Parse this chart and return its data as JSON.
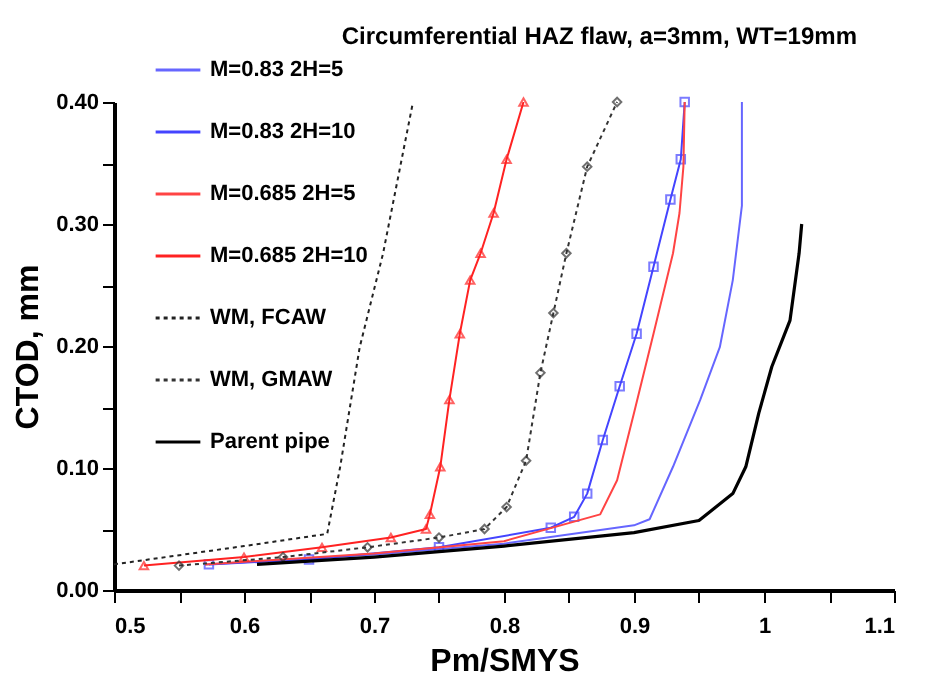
{
  "chart_data": {
    "type": "line",
    "title": "Circumferential HAZ flaw, a=3mm, WT=19mm",
    "xlabel": "Pm/SMYS",
    "ylabel": "CTOD, mm",
    "xlim": [
      0.5,
      1.1
    ],
    "ylim": [
      0,
      0.4
    ],
    "xticks": [
      0.5,
      {
        "value": 0.55,
        "label": null
      },
      0.6,
      {
        "value": 0.65,
        "label": null
      },
      0.7,
      {
        "value": 0.75,
        "label": null
      },
      0.8,
      {
        "value": 0.85,
        "label": null
      },
      0.9,
      {
        "value": 0.95,
        "label": null
      },
      1,
      {
        "value": 1.05,
        "label": null
      },
      1.1
    ],
    "yticks": [
      {
        "value": 0,
        "label": "0.00"
      },
      {
        "value": 0.05,
        "label": null
      },
      {
        "value": 0.1,
        "label": "0.10"
      },
      {
        "value": 0.15,
        "label": null
      },
      {
        "value": 0.2,
        "label": "0.20"
      },
      {
        "value": 0.25,
        "label": null
      },
      {
        "value": 0.3,
        "label": "0.30"
      },
      {
        "value": 0.35,
        "label": null
      },
      {
        "value": 0.4,
        "label": "0.40"
      }
    ],
    "grid": false,
    "legend": "top left",
    "series": [
      {
        "name": "M=0.83 2H=5",
        "color": "#6666ff",
        "marker": "none",
        "line_style": "solid",
        "x": [
          0.57,
          0.7,
          0.8,
          0.9,
          0.912,
          0.93,
          0.951,
          0.966,
          0.976,
          0.983,
          0.983
        ],
        "values": [
          0.021,
          0.029,
          0.038,
          0.053,
          0.058,
          0.101,
          0.156,
          0.199,
          0.254,
          0.315,
          0.4
        ]
      },
      {
        "name": "M=0.83 2H=10",
        "color": "#4444ff",
        "marker": "square",
        "line_style": "solid",
        "x": [
          0.573,
          0.65,
          0.75,
          0.836,
          0.854,
          0.864,
          0.876,
          0.889,
          0.902,
          0.915,
          0.928,
          0.936,
          0.939
        ],
        "values": [
          0.021,
          0.025,
          0.035,
          0.051,
          0.06,
          0.079,
          0.123,
          0.167,
          0.21,
          0.265,
          0.32,
          0.353,
          0.4
        ]
      },
      {
        "name": "M=0.685 2H=5",
        "color": "#ff4444",
        "marker": "none",
        "line_style": "solid",
        "x": [
          0.57,
          0.7,
          0.8,
          0.874,
          0.887,
          0.9,
          0.915,
          0.93,
          0.935,
          0.938,
          0.939
        ],
        "values": [
          0.021,
          0.03,
          0.04,
          0.062,
          0.09,
          0.145,
          0.21,
          0.276,
          0.309,
          0.347,
          0.4
        ]
      },
      {
        "name": "M=0.685 2H=10",
        "color": "#ff2222",
        "marker": "triangle",
        "line_style": "solid",
        "x": [
          0.523,
          0.6,
          0.66,
          0.713,
          0.74,
          0.743,
          0.751,
          0.758,
          0.766,
          0.774,
          0.782,
          0.792,
          0.802,
          0.815
        ],
        "values": [
          0.02,
          0.027,
          0.035,
          0.043,
          0.05,
          0.062,
          0.101,
          0.156,
          0.21,
          0.254,
          0.276,
          0.309,
          0.353,
          0.4
        ]
      },
      {
        "name": "WM, FCAW",
        "color": "#222222",
        "marker": "none",
        "line_style": "dotted",
        "x": [
          0.5,
          0.6,
          0.664,
          0.674,
          0.689,
          0.707,
          0.73
        ],
        "values": [
          0.021,
          0.036,
          0.046,
          0.101,
          0.199,
          0.276,
          0.4
        ]
      },
      {
        "name": "WM, GMAW",
        "color": "#333333",
        "marker": "diamond",
        "line_style": "dotted",
        "x": [
          0.55,
          0.63,
          0.695,
          0.75,
          0.785,
          0.802,
          0.817,
          0.828,
          0.838,
          0.848,
          0.864,
          0.887
        ],
        "values": [
          0.02,
          0.027,
          0.035,
          0.043,
          0.05,
          0.068,
          0.106,
          0.178,
          0.227,
          0.276,
          0.347,
          0.4
        ]
      },
      {
        "name": "Parent pipe",
        "color": "#000000",
        "marker": "none",
        "line_style": "solid",
        "x": [
          0.61,
          0.7,
          0.8,
          0.9,
          0.95,
          0.976,
          0.986,
          0.996,
          1.006,
          1.02,
          1.027,
          1.029
        ],
        "values": [
          0.021,
          0.027,
          0.036,
          0.047,
          0.057,
          0.079,
          0.101,
          0.145,
          0.183,
          0.221,
          0.276,
          0.3
        ]
      }
    ]
  }
}
